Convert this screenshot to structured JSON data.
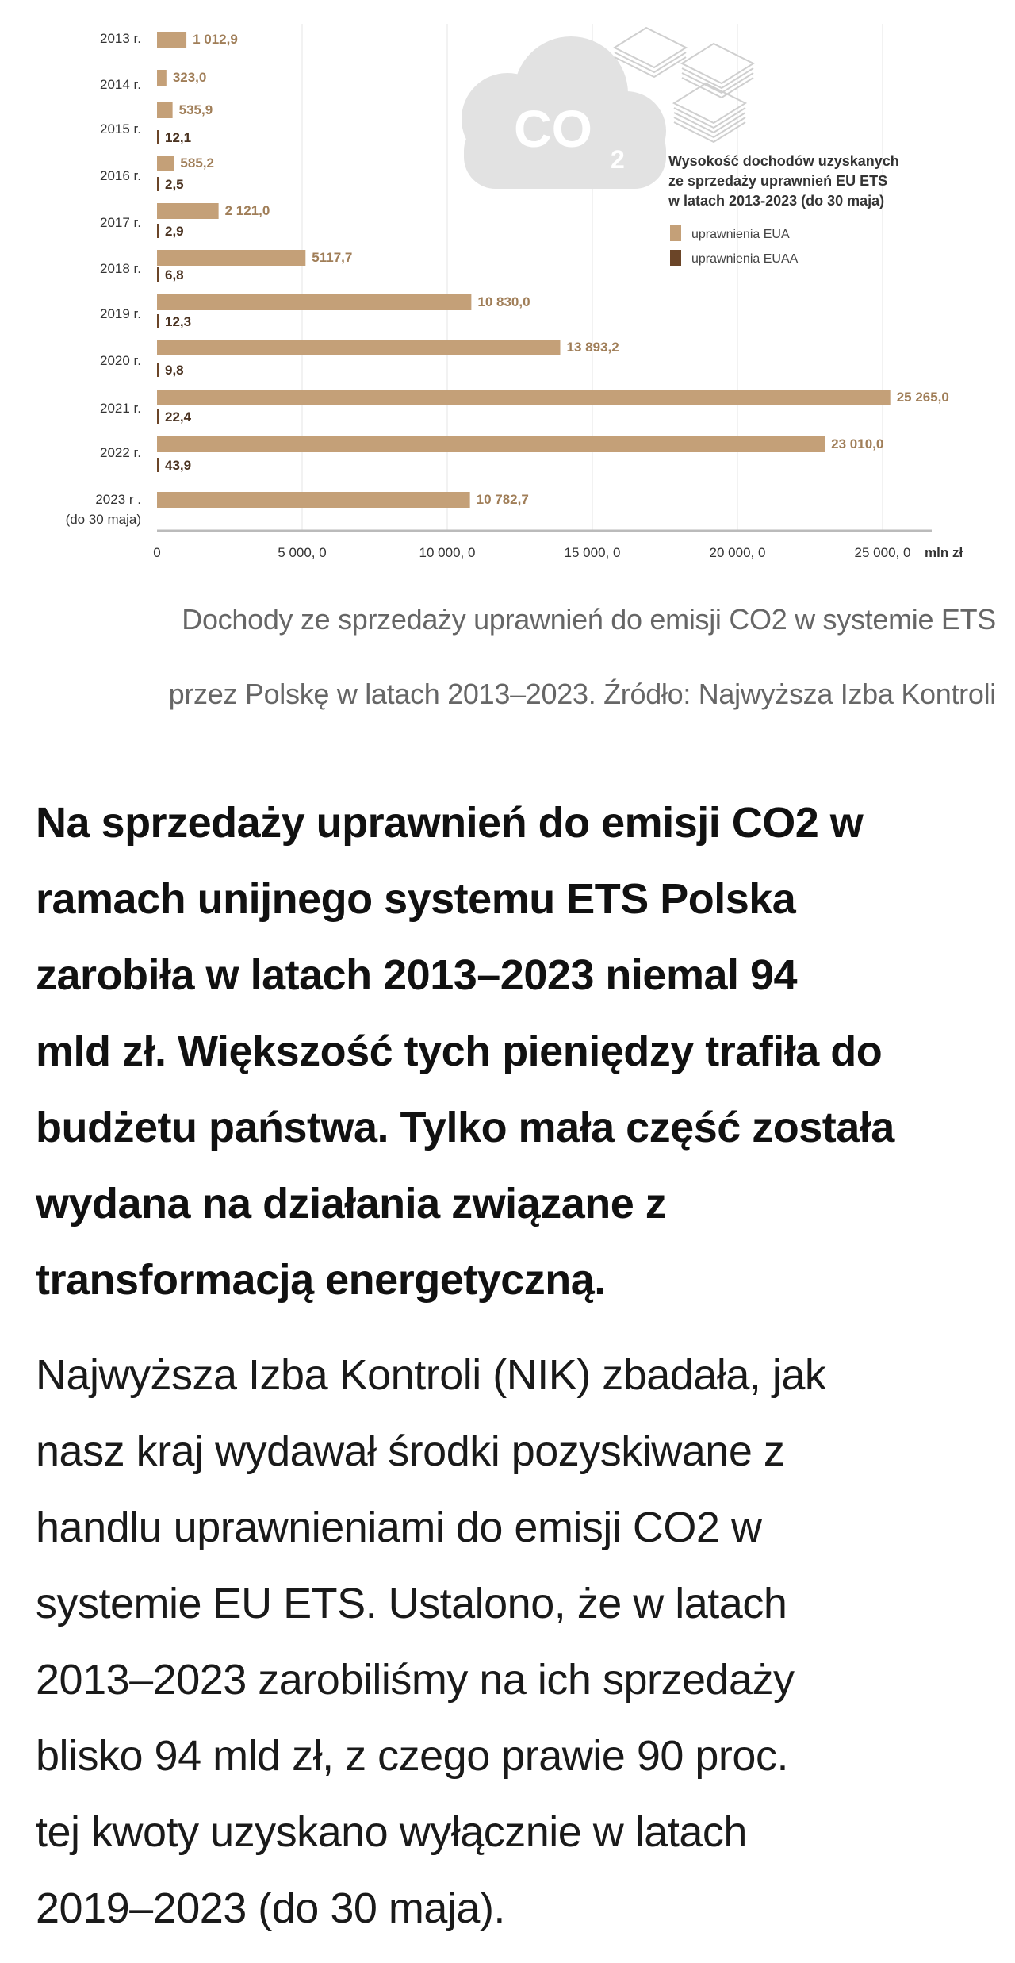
{
  "chart_data": {
    "type": "bar",
    "orientation": "horizontal",
    "title": "Wysokość dochodów uzyskanych ze sprzedaży uprawnień EU ETS w latach 2013-2023 (do 30 maja)",
    "title_lines": [
      "Wysokość dochodów uzyskanych",
      "ze sprzedaży uprawnień EU ETS",
      "w latach 2013-2023 (do 30 maja)"
    ],
    "categories": [
      "2013 r.",
      "2014 r.",
      "2015 r.",
      "2016 r.",
      "2017 r.",
      "2018 r.",
      "2019 r.",
      "2020 r.",
      "2021 r.",
      "2022 r.",
      "2023 r ."
    ],
    "category_sublabels": {
      "2023 r .": "(do 30 maja)"
    },
    "series": [
      {
        "name": "uprawnienia EUA",
        "color": "#c4a078",
        "values": [
          1012.9,
          323.0,
          535.9,
          585.2,
          2121.0,
          5117.7,
          10830.0,
          13893.2,
          25265.0,
          23010.0,
          10782.7
        ],
        "labels": [
          "1 012,9",
          "323,0",
          "535,9",
          "585,2",
          "2 121,0",
          "5117,7",
          "10 830,0",
          "13 893,2",
          "25 265,0",
          "23 010,0",
          "10 782,7"
        ]
      },
      {
        "name": "uprawnienia EUAA",
        "color": "#6b4528",
        "values": [
          null,
          null,
          12.1,
          2.5,
          2.9,
          6.8,
          12.3,
          9.8,
          22.4,
          43.9,
          null
        ],
        "labels": [
          null,
          null,
          "12,1",
          "2,5",
          "2,9",
          "6,8",
          "12,3",
          "9,8",
          "22,4",
          "43,9",
          null
        ]
      }
    ],
    "xticks": [
      0,
      5000,
      10000,
      15000,
      20000,
      25000
    ],
    "xtick_labels": [
      "0",
      "5 000, 0",
      "10 000, 0",
      "15 000, 0",
      "20 000, 0",
      "25 000, 0"
    ],
    "xunit": "mln zł",
    "xlim": [
      0,
      26500
    ],
    "grid": true,
    "legend_position": "top-right",
    "decoration": {
      "cloud_text": "CO",
      "cloud_sub": "2",
      "cloud_color": "#e2e2e2"
    }
  },
  "caption": {
    "lines": [
      "Dochody ze sprzedaży uprawnień do emisji CO2 w systemie ETS",
      "przez Polskę w latach 2013–2023. Źródło: Najwyższa Izba Kontroli"
    ]
  },
  "heading": {
    "lines": [
      "Na sprzedaży uprawnień do emisji CO2 w",
      "ramach unijnego systemu ETS Polska",
      "zarobiła w latach 2013–2023 niemal 94",
      "mld zł. Większość tych pieniędzy trafiła do",
      "budżetu państwa. Tylko mała część została",
      "wydana na działania związane z",
      "transformacją energetyczną."
    ]
  },
  "body": {
    "lines": [
      "Najwyższa Izba Kontroli (NIK) zbadała, jak",
      "nasz kraj wydawał środki pozyskiwane z",
      "handlu uprawnieniami do emisji CO2 w",
      "systemie EU ETS. Ustalono, że w latach",
      "2013–2023 zarobiliśmy na ich sprzedaży",
      "blisko 94 mld zł, z czego prawie 90 proc.",
      "tej kwoty uzyskano wyłącznie w latach",
      "2019–2023 (do 30 maja)."
    ]
  }
}
